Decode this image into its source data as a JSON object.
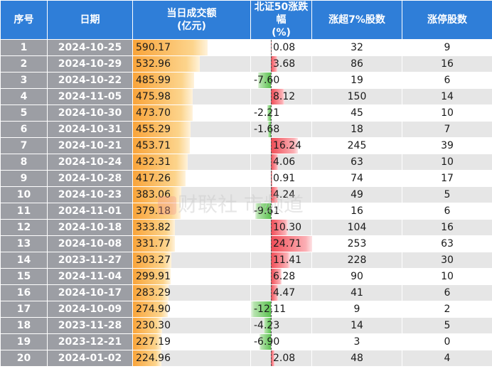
{
  "headers": {
    "index": "序号",
    "date": "日期",
    "amount_line1": "当日成交额",
    "amount_line2": "(亿元)",
    "change_line1": "北证50涨跌幅",
    "change_line2": "(%)",
    "up7": "涨超7%股数",
    "limit_up": "涨停股数"
  },
  "rows": [
    {
      "index": "1",
      "date": "2024-10-25",
      "amount": "590.17",
      "change": "0.08",
      "up7": "32",
      "limit_up": "9"
    },
    {
      "index": "2",
      "date": "2024-10-29",
      "amount": "532.96",
      "change": "3.68",
      "up7": "86",
      "limit_up": "16"
    },
    {
      "index": "3",
      "date": "2024-10-22",
      "amount": "485.99",
      "change": "-7.60",
      "up7": "19",
      "limit_up": "6"
    },
    {
      "index": "4",
      "date": "2024-11-05",
      "amount": "475.98",
      "change": "8.12",
      "up7": "150",
      "limit_up": "14"
    },
    {
      "index": "5",
      "date": "2024-10-30",
      "amount": "473.70",
      "change": "-2.21",
      "up7": "45",
      "limit_up": "10"
    },
    {
      "index": "6",
      "date": "2024-10-31",
      "amount": "455.29",
      "change": "-1.68",
      "up7": "18",
      "limit_up": "7"
    },
    {
      "index": "7",
      "date": "2024-10-21",
      "amount": "453.71",
      "change": "16.24",
      "up7": "245",
      "limit_up": "39"
    },
    {
      "index": "8",
      "date": "2024-10-24",
      "amount": "432.31",
      "change": "4.06",
      "up7": "63",
      "limit_up": "10"
    },
    {
      "index": "9",
      "date": "2024-10-28",
      "amount": "417.26",
      "change": "0.91",
      "up7": "74",
      "limit_up": "17"
    },
    {
      "index": "10",
      "date": "2024-10-23",
      "amount": "383.06",
      "change": "4.24",
      "up7": "49",
      "limit_up": "5"
    },
    {
      "index": "11",
      "date": "2024-11-01",
      "amount": "379.18",
      "change": "-9.61",
      "up7": "16",
      "limit_up": "6"
    },
    {
      "index": "12",
      "date": "2024-10-18",
      "amount": "333.82",
      "change": "10.30",
      "up7": "104",
      "limit_up": "16"
    },
    {
      "index": "13",
      "date": "2024-10-08",
      "amount": "331.77",
      "change": "24.71",
      "up7": "253",
      "limit_up": "63"
    },
    {
      "index": "14",
      "date": "2023-11-27",
      "amount": "303.27",
      "change": "11.41",
      "up7": "228",
      "limit_up": "30"
    },
    {
      "index": "15",
      "date": "2024-11-04",
      "amount": "299.91",
      "change": "6.28",
      "up7": "90",
      "limit_up": "10"
    },
    {
      "index": "16",
      "date": "2024-10-17",
      "amount": "283.29",
      "change": "4.47",
      "up7": "41",
      "limit_up": "6"
    },
    {
      "index": "17",
      "date": "2024-10-09",
      "amount": "274.90",
      "change": "-12.11",
      "up7": "9",
      "limit_up": "2"
    },
    {
      "index": "18",
      "date": "2023-11-28",
      "amount": "230.30",
      "change": "-4.23",
      "up7": "14",
      "limit_up": "5"
    },
    {
      "index": "19",
      "date": "2023-12-21",
      "amount": "227.19",
      "change": "-6.90",
      "up7": "3",
      "limit_up": "0"
    },
    {
      "index": "20",
      "date": "2024-01-02",
      "amount": "224.96",
      "change": "2.08",
      "up7": "48",
      "limit_up": "4"
    }
  ],
  "colors": {
    "header_bg": "#2f7ed8",
    "index_bg": "#9c9ea4",
    "amount_bar": "#f9a43a",
    "positive_bar": "#f04c56",
    "negative_bar": "#5cc350"
  },
  "watermark": "财联社 市频道"
}
